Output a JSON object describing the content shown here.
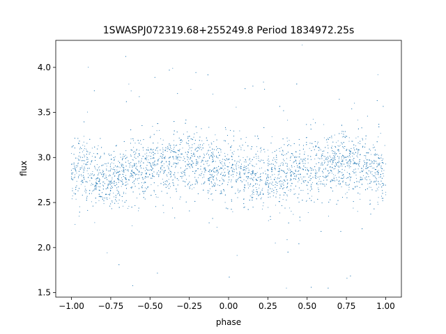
{
  "chart_data": {
    "type": "scatter",
    "title": "1SWASPJ072319.68+255249.8 Period 1834972.25s",
    "xlabel": "phase",
    "ylabel": "flux",
    "xlim": [
      -1.1,
      1.1
    ],
    "ylim": [
      1.45,
      4.3
    ],
    "xticks": [
      -1.0,
      -0.75,
      -0.5,
      -0.25,
      0.0,
      0.25,
      0.5,
      0.75,
      1.0
    ],
    "xtick_labels": [
      "−1.00",
      "−0.75",
      "−0.50",
      "−0.25",
      "0.00",
      "0.25",
      "0.50",
      "0.75",
      "1.00"
    ],
    "yticks": [
      1.5,
      2.0,
      2.5,
      3.0,
      3.5,
      4.0
    ],
    "ytick_labels": [
      "1.5",
      "2.0",
      "2.5",
      "3.0",
      "3.5",
      "4.0"
    ],
    "grid": false,
    "legend": "none",
    "marker_color": "#1f77b4",
    "series": [
      {
        "phase": [
          -1.0,
          -0.9,
          -0.8,
          -0.7,
          -0.6,
          -0.5,
          -0.4,
          -0.3,
          -0.2,
          -0.1,
          0.0,
          0.1,
          0.2,
          0.3,
          0.4,
          0.5,
          0.6,
          0.7,
          0.8,
          0.9,
          1.0
        ],
        "flux_median": [
          2.85,
          2.84,
          2.78,
          2.8,
          2.85,
          2.9,
          2.93,
          2.95,
          2.92,
          2.87,
          2.87,
          2.85,
          2.78,
          2.78,
          2.85,
          2.88,
          2.93,
          2.95,
          2.92,
          2.88,
          2.85
        ],
        "flux_spread": 0.17,
        "flux_min": 1.55,
        "flux_max": 4.25
      }
    ]
  }
}
